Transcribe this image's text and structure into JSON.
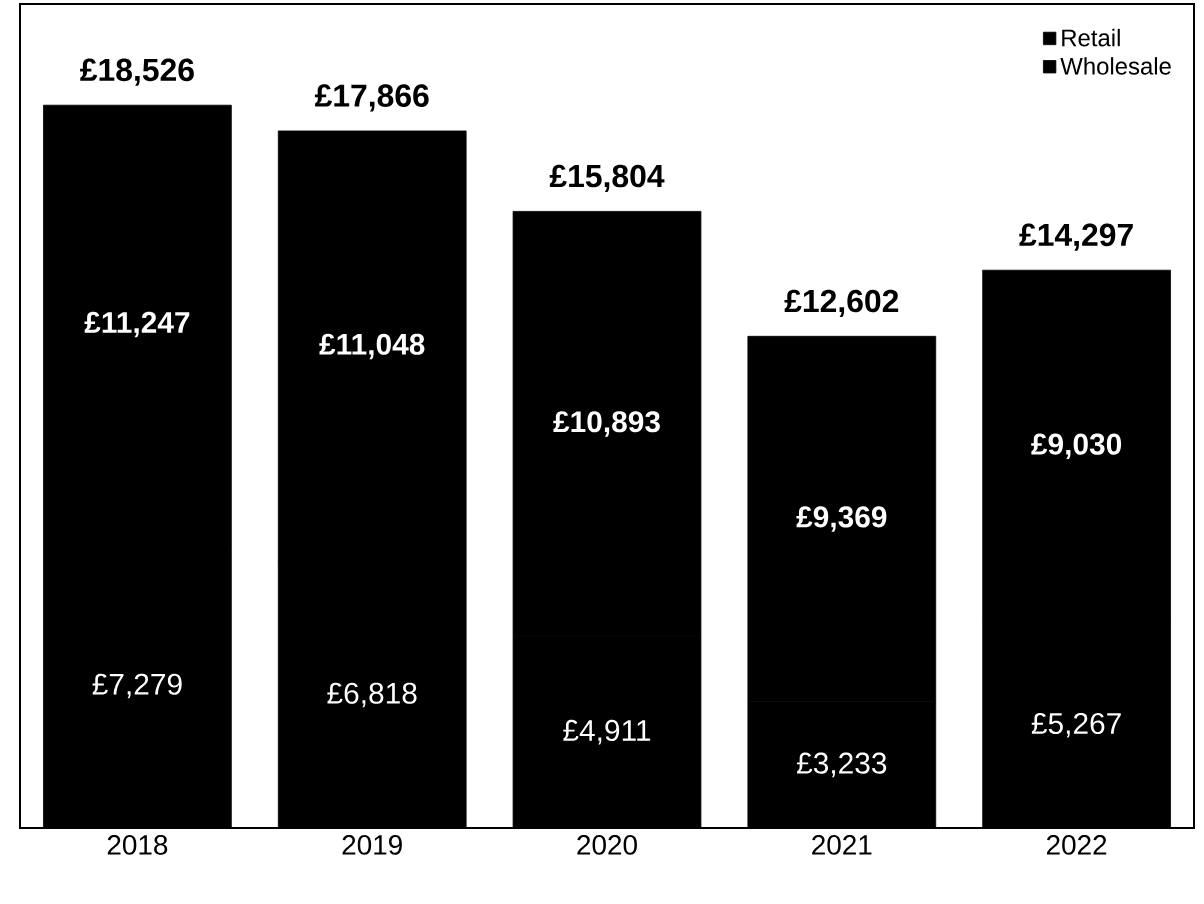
{
  "chart_data": {
    "type": "bar",
    "stacked": true,
    "categories": [
      "2018",
      "2019",
      "2020",
      "2021",
      "2022"
    ],
    "series": [
      {
        "name": "Wholesale",
        "color": "#000000",
        "values": [
          7279,
          6818,
          4911,
          3233,
          5267
        ],
        "value_labels": [
          "£7,279",
          "£6,818",
          "£4,911",
          "£3,233",
          "£5,267"
        ]
      },
      {
        "name": "Retail",
        "color": "#000000",
        "values": [
          11247,
          11048,
          10893,
          9369,
          9030
        ],
        "value_labels": [
          "£11,247",
          "£11,048",
          "£10,893",
          "£9,369",
          "£9,030"
        ]
      }
    ],
    "totals": [
      "£18,526",
      "£17,866",
      "£15,804",
      "£12,602",
      "£14,297"
    ],
    "legend": "top right"
  }
}
